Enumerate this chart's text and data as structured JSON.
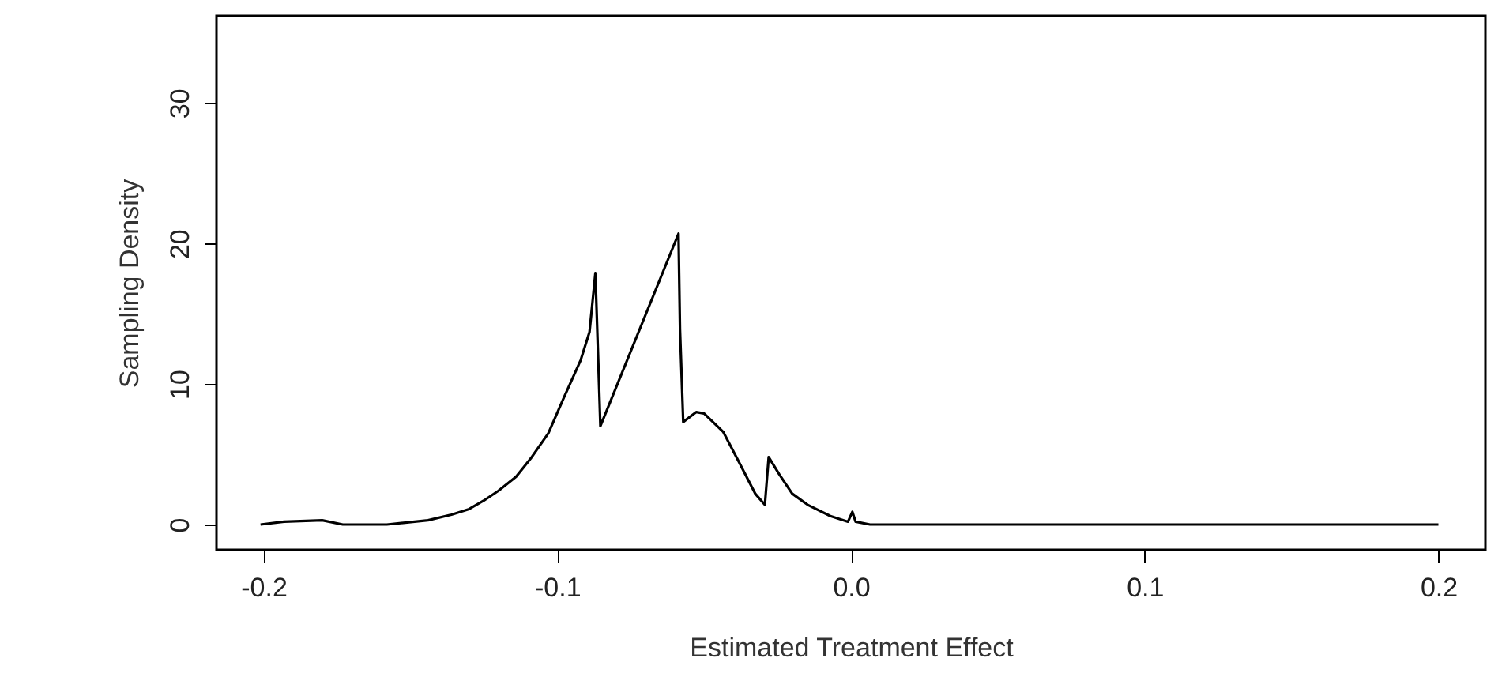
{
  "chart_data": {
    "type": "line",
    "xlabel": "Estimated Treatment Effect",
    "ylabel": "Sampling Density",
    "xlim": [
      -0.216,
      0.216
    ],
    "xticks": [
      {
        "value": -0.2,
        "label": "-0.2"
      },
      {
        "value": -0.1,
        "label": "-0.1"
      },
      {
        "value": 0,
        "label": "0.0"
      },
      {
        "value": 0.1,
        "label": "0.1"
      },
      {
        "value": 0.2,
        "label": "0.2"
      }
    ],
    "ylim": [
      -1.8,
      36.2
    ],
    "yticks": [
      0,
      10,
      20,
      30
    ],
    "grid": false,
    "line_style": "solid",
    "series": [
      {
        "color": "#000000",
        "x": [
          -0.201,
          -0.193,
          -0.18,
          -0.173,
          -0.158,
          -0.144,
          -0.136,
          -0.13,
          -0.125,
          -0.12,
          -0.114,
          -0.109,
          -0.103,
          -0.098,
          -0.092,
          -0.089,
          -0.087,
          -0.0853,
          -0.0587,
          -0.0582,
          -0.0571,
          -0.0527,
          -0.05,
          -0.0435,
          -0.038,
          -0.0326,
          -0.0293,
          -0.028,
          -0.0245,
          -0.02,
          -0.0147,
          -0.007,
          -0.001,
          0.0005,
          0.0016,
          0.0065,
          0.2
        ],
        "values": [
          0,
          0.2,
          0.3,
          0,
          0,
          0.3,
          0.7,
          1.1,
          1.7,
          2.4,
          3.4,
          4.7,
          6.5,
          8.9,
          11.7,
          13.7,
          17.9,
          7,
          20.7,
          13.9,
          7.3,
          8,
          7.9,
          6.6,
          4.4,
          2.2,
          1.4,
          4.8,
          3.6,
          2.2,
          1.4,
          0.6,
          0.2,
          0.9,
          0.2,
          0,
          0
        ]
      }
    ]
  }
}
